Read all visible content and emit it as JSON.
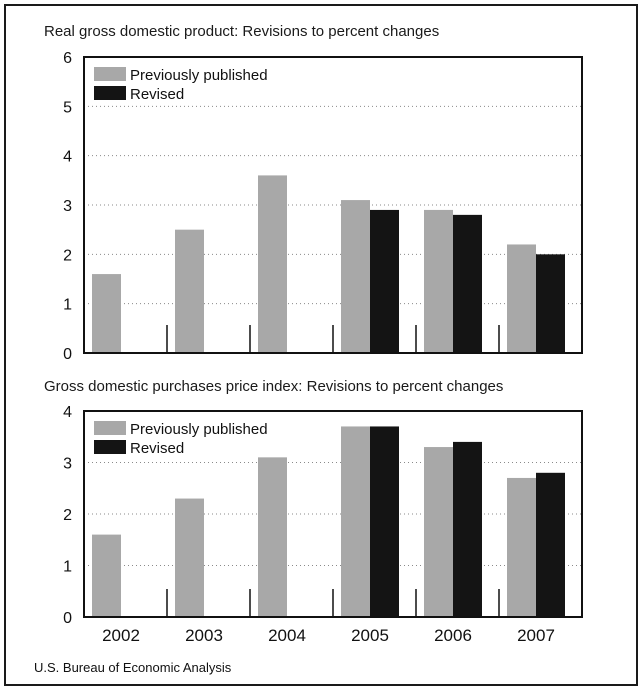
{
  "source": "U.S. Bureau of Economic Analysis",
  "colors": {
    "previously_published": "#a8a8a8",
    "revised": "#141414",
    "grid": "#8a8a8a",
    "frame": "#111111"
  },
  "chart_data": [
    {
      "type": "bar",
      "title": "Real gross domestic product: Revisions to percent changes",
      "xlabel": "",
      "ylabel": "",
      "categories": [
        "2002",
        "2003",
        "2004",
        "2005",
        "2006",
        "2007"
      ],
      "ylim": [
        0,
        6
      ],
      "yticks": [
        "0",
        "1",
        "2",
        "3",
        "4",
        "5",
        "6"
      ],
      "grid": true,
      "legend": "top-left",
      "show_category_labels": false,
      "series": [
        {
          "name": "Previously published",
          "color": "#a8a8a8",
          "values": [
            1.6,
            2.5,
            3.6,
            3.1,
            2.9,
            2.2
          ]
        },
        {
          "name": "Revised",
          "color": "#141414",
          "values": [
            null,
            null,
            null,
            2.9,
            2.8,
            2.0
          ]
        }
      ]
    },
    {
      "type": "bar",
      "title": "Gross domestic purchases price index: Revisions to percent changes",
      "xlabel": "",
      "ylabel": "",
      "categories": [
        "2002",
        "2003",
        "2004",
        "2005",
        "2006",
        "2007"
      ],
      "ylim": [
        0,
        4
      ],
      "yticks": [
        "0",
        "1",
        "2",
        "3",
        "4"
      ],
      "grid": true,
      "legend": "top-left",
      "show_category_labels": true,
      "series": [
        {
          "name": "Previously published",
          "color": "#a8a8a8",
          "values": [
            1.6,
            2.3,
            3.1,
            3.7,
            3.3,
            2.7
          ]
        },
        {
          "name": "Revised",
          "color": "#141414",
          "values": [
            null,
            null,
            null,
            3.7,
            3.4,
            2.8
          ]
        }
      ]
    }
  ]
}
